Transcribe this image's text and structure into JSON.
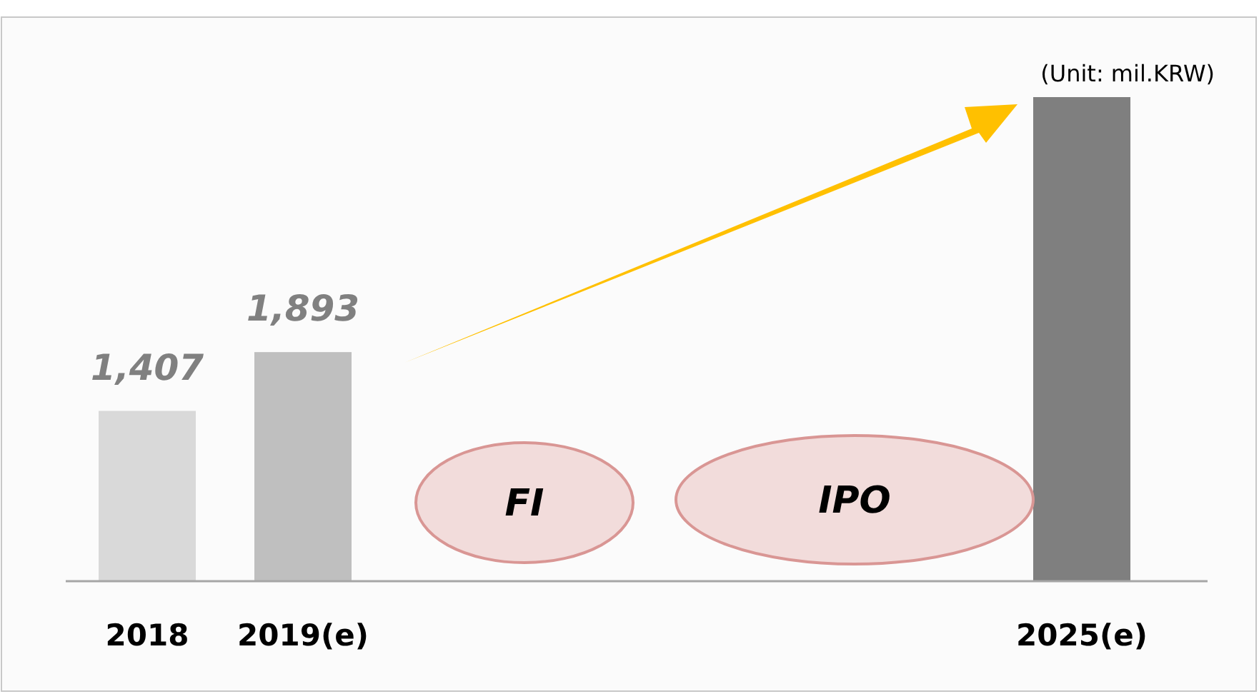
{
  "chart_data": {
    "type": "bar",
    "categories": [
      "2018",
      "2019(e)",
      null,
      null,
      null,
      null,
      "2025(e)"
    ],
    "values": [
      1407,
      1893,
      null,
      null,
      null,
      null,
      4000
    ],
    "colors": [
      "#d9d9d9",
      "#bfbfbf",
      null,
      null,
      null,
      null,
      "#7f7f7f"
    ],
    "value_labels": [
      "1,407",
      "1,893",
      null,
      null,
      null,
      null,
      null
    ],
    "annotations": [
      "(Unit: mil.KRW)",
      "FI",
      "IPO"
    ]
  }
}
